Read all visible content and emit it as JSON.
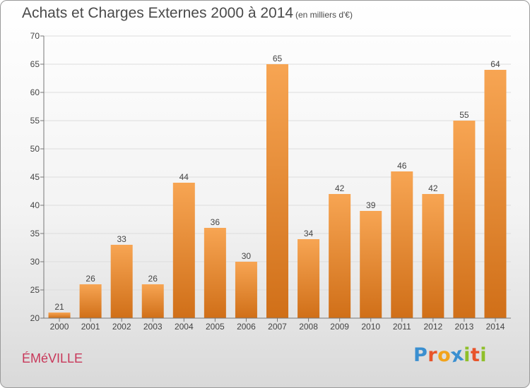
{
  "title": "Achats et Charges Externes 2000 à 2014",
  "subtitle": "(en milliers d'€)",
  "commune": "ÉMéVILLE",
  "logo": {
    "letters": [
      "P",
      "r",
      "o",
      "x",
      "i",
      "t",
      "i"
    ],
    "colors": [
      "#3a8fd0",
      "#e8542a",
      "#f2a31b",
      "#3a8fd0",
      "#8fbf2a",
      "#e8542a",
      "#8fbf2a"
    ]
  },
  "colors": {
    "bar_top": "#f7a553",
    "bar_bottom": "#d06f18",
    "axis": "#777777",
    "grid": "#dddddd",
    "text": "#444444"
  },
  "chart_data": {
    "type": "bar",
    "title": "Achats et Charges Externes 2000 à 2014",
    "subtitle": "(en milliers d'€)",
    "categories": [
      "2000",
      "2001",
      "2002",
      "2003",
      "2004",
      "2005",
      "2006",
      "2007",
      "2008",
      "2009",
      "2010",
      "2011",
      "2012",
      "2013",
      "2014"
    ],
    "values": [
      21,
      26,
      33,
      26,
      44,
      36,
      30,
      65,
      34,
      42,
      39,
      46,
      42,
      55,
      64
    ],
    "ylim": [
      20,
      70
    ],
    "yticks": [
      20,
      25,
      30,
      35,
      40,
      45,
      50,
      55,
      60,
      65,
      70
    ],
    "grid": true,
    "data_labels": true,
    "xlabel": "",
    "ylabel": ""
  }
}
